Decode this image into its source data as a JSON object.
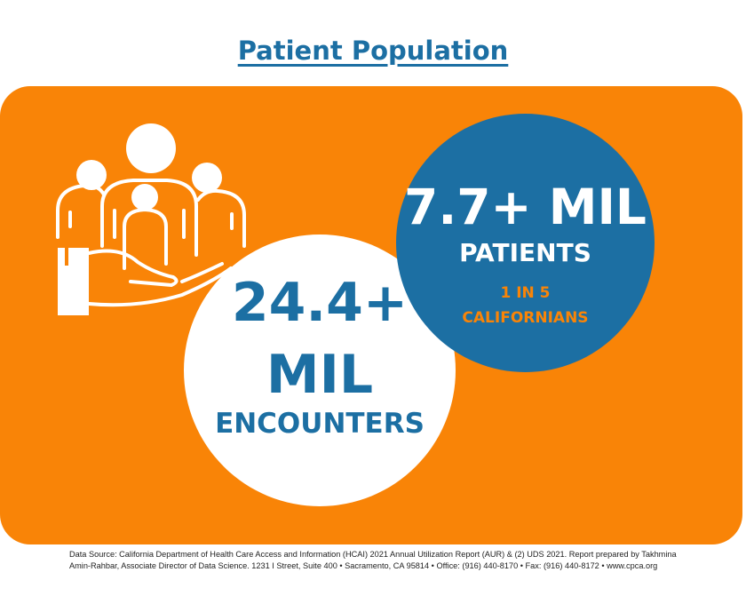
{
  "title": "Patient Population",
  "encounters": {
    "number_line1": "24.4+",
    "number_line2": "MIL",
    "label": "ENCOUNTERS"
  },
  "patients": {
    "number": "7.7+ MIL",
    "label": "PATIENTS",
    "sub_line1": "1 IN 5",
    "sub_line2": "CALIFORNIANS"
  },
  "source": {
    "line1": "Data Source: California Department of Health Care Access and Information (HCAI) 2021 Annual Utilization Report (AUR) & (2) UDS 2021. Report prepared by Takhmina",
    "line2": "Amin-Rahbar, Associate Director of Data Science. 1231 I Street, Suite 400 • Sacramento, CA 95814 • Office: (916) 440-8170 • Fax: (916) 440-8172 • www.cpca.org"
  },
  "icons": {
    "people": "people-in-hand-icon"
  },
  "colors": {
    "orange": "#f98407",
    "blue": "#1c6fa3",
    "white": "#ffffff"
  }
}
